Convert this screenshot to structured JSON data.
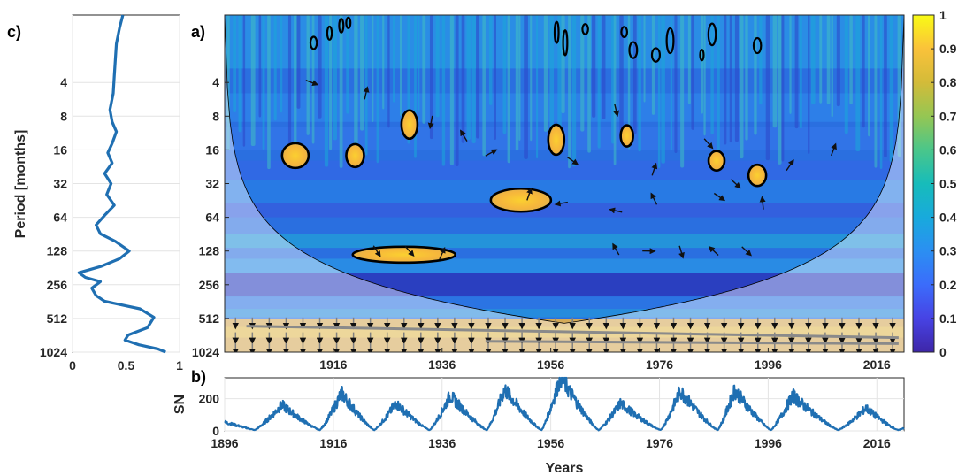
{
  "chart_data": [
    {
      "panel": "c)",
      "type": "line",
      "ylabel": "Period [months]",
      "y_scale": "log2",
      "ylim": [
        1,
        1024
      ],
      "y_reversed": true,
      "yticks": [
        4,
        8,
        16,
        32,
        64,
        128,
        256,
        512,
        1024
      ],
      "xlim": [
        0,
        1
      ],
      "xticks": [
        0,
        0.5,
        1
      ],
      "xtick_labels": [
        "0",
        "0.5",
        "1"
      ],
      "grid": true,
      "color": "#1f6fb2",
      "points": [
        {
          "x": 0.47,
          "y": 1
        },
        {
          "x": 0.44,
          "y": 1.3
        },
        {
          "x": 0.41,
          "y": 1.8
        },
        {
          "x": 0.4,
          "y": 2.5
        },
        {
          "x": 0.39,
          "y": 3.5
        },
        {
          "x": 0.38,
          "y": 5
        },
        {
          "x": 0.35,
          "y": 7
        },
        {
          "x": 0.37,
          "y": 9
        },
        {
          "x": 0.41,
          "y": 11
        },
        {
          "x": 0.37,
          "y": 14
        },
        {
          "x": 0.33,
          "y": 17
        },
        {
          "x": 0.37,
          "y": 21
        },
        {
          "x": 0.3,
          "y": 26
        },
        {
          "x": 0.36,
          "y": 32
        },
        {
          "x": 0.32,
          "y": 40
        },
        {
          "x": 0.39,
          "y": 50
        },
        {
          "x": 0.31,
          "y": 60
        },
        {
          "x": 0.22,
          "y": 75
        },
        {
          "x": 0.26,
          "y": 90
        },
        {
          "x": 0.4,
          "y": 105
        },
        {
          "x": 0.53,
          "y": 128
        },
        {
          "x": 0.44,
          "y": 150
        },
        {
          "x": 0.27,
          "y": 175
        },
        {
          "x": 0.06,
          "y": 200
        },
        {
          "x": 0.12,
          "y": 220
        },
        {
          "x": 0.26,
          "y": 240
        },
        {
          "x": 0.18,
          "y": 275
        },
        {
          "x": 0.22,
          "y": 320
        },
        {
          "x": 0.3,
          "y": 360
        },
        {
          "x": 0.63,
          "y": 420
        },
        {
          "x": 0.76,
          "y": 500
        },
        {
          "x": 0.7,
          "y": 620
        },
        {
          "x": 0.52,
          "y": 720
        },
        {
          "x": 0.49,
          "y": 800
        },
        {
          "x": 0.62,
          "y": 880
        },
        {
          "x": 0.8,
          "y": 960
        },
        {
          "x": 0.87,
          "y": 1024
        }
      ]
    },
    {
      "panel": "a)",
      "type": "heatmap",
      "description_free": true,
      "y_scale": "log2",
      "ylim": [
        1,
        1024
      ],
      "y_reversed": true,
      "yticks": [
        4,
        8,
        16,
        32,
        64,
        128,
        256,
        512,
        1024
      ],
      "xlim": [
        1896,
        2021
      ],
      "xticks": [
        1916,
        1936,
        1956,
        1976,
        1996,
        2016
      ],
      "colorbar": {
        "range": [
          0,
          1
        ],
        "ticks": [
          "0",
          "0.1",
          "0.2",
          "0.3",
          "0.4",
          "0.5",
          "0.6",
          "0.7",
          "0.8",
          "0.9",
          "1"
        ]
      },
      "high_coherence_regions": [
        {
          "x": 1930,
          "y": 9.5
        },
        {
          "x": 1950.5,
          "y": 45
        },
        {
          "x": 1929,
          "y": 138
        },
        {
          "x": 1957,
          "y": 13
        },
        {
          "x": 1986.5,
          "y": 20
        },
        {
          "x": 1994,
          "y": 27
        },
        {
          "x": 1909,
          "y": 18
        },
        {
          "x": 1920,
          "y": 18
        },
        {
          "x": 1970,
          "y": 12
        },
        {
          "x": 1957,
          "y": 560
        },
        {
          "x": 1944,
          "y": 900
        }
      ]
    },
    {
      "panel": "b)",
      "type": "line",
      "xlabel": "Years",
      "ylabel": "SN",
      "xlim": [
        1896,
        2021
      ],
      "xticks": [
        1896,
        1916,
        1936,
        1956,
        1976,
        1996,
        2016
      ],
      "ylim": [
        0,
        330
      ],
      "yticks": [
        0,
        200
      ],
      "grid": true,
      "color": "#1f6fb2",
      "cycles": [
        {
          "min_year": 1901.5,
          "max_year": 1906.5,
          "max": 165
        },
        {
          "min_year": 1913.5,
          "max_year": 1917.5,
          "max": 240
        },
        {
          "min_year": 1923.5,
          "max_year": 1927.5,
          "max": 175
        },
        {
          "min_year": 1933.7,
          "max_year": 1937.5,
          "max": 225
        },
        {
          "min_year": 1944.2,
          "max_year": 1947.5,
          "max": 265
        },
        {
          "min_year": 1954.3,
          "max_year": 1957.8,
          "max": 345
        },
        {
          "min_year": 1964.8,
          "max_year": 1968.8,
          "max": 175
        },
        {
          "min_year": 1976.2,
          "max_year": 1979.8,
          "max": 255
        },
        {
          "min_year": 1986.7,
          "max_year": 1989.8,
          "max": 260
        },
        {
          "min_year": 1996.5,
          "max_year": 2000.5,
          "max": 225
        },
        {
          "min_year": 2008.9,
          "max_year": 2014.0,
          "max": 145
        },
        {
          "min_year": 2019.9,
          "max_year": 2021.0,
          "max": 20
        }
      ]
    }
  ]
}
